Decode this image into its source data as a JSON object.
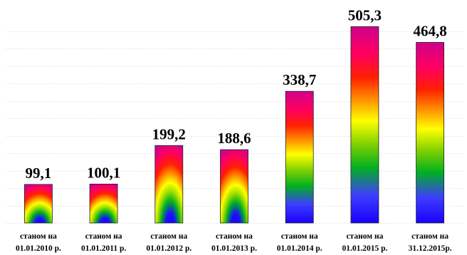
{
  "chart_data": {
    "type": "bar",
    "title": "",
    "xlabel": "",
    "ylabel": "",
    "ylim": [
      0,
      560
    ],
    "grid": true,
    "categories": [
      [
        "станом на",
        "01.01.2010 р."
      ],
      [
        "станом на",
        "01.01.2011 р."
      ],
      [
        "станом на",
        "01.01.2012 р."
      ],
      [
        "станом на",
        "01.01.2013 р."
      ],
      [
        "станом на",
        "01.01.2014 р."
      ],
      [
        "станом на",
        "01.01.2015 р."
      ],
      [
        "станом на",
        "31.12.2015р."
      ]
    ],
    "values": [
      99.1,
      100.1,
      199.2,
      188.6,
      338.7,
      505.3,
      464.8
    ],
    "value_labels": [
      "99,1",
      "100,1",
      "199,2",
      "188,6",
      "338,7",
      "505,3",
      "464,8"
    ],
    "fill_style": [
      "radial",
      "radial",
      "radial",
      "radial",
      "linear",
      "linear",
      "linear"
    ],
    "colors": [
      "#0000ff",
      "#00c000",
      "#ffff00",
      "#ff8000",
      "#ff0000",
      "#c00080"
    ]
  }
}
